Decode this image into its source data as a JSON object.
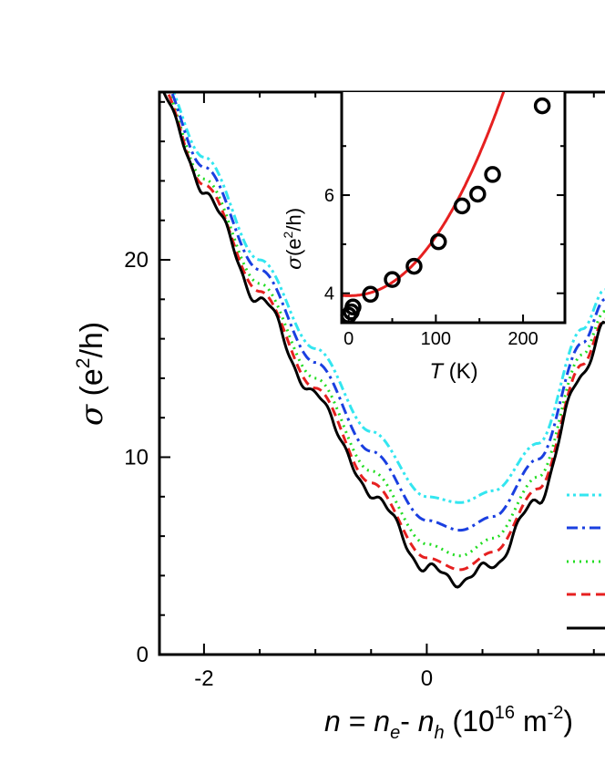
{
  "chart_data": [
    {
      "type": "line",
      "xlabel": {
        "main_italic": "n",
        "eq": " = ",
        "ne_base": "n",
        "ne_sub": "e",
        "minus": "- ",
        "nh_base": "n",
        "nh_sub": "h",
        "units_open": " (10",
        "units_exp": "16",
        "units_mid": " m",
        "units_exp2": "-2",
        "units_close": ")"
      },
      "ylabel": {
        "sigma": "σ",
        "open": " (e",
        "exp": "2",
        "rest": "/h)"
      },
      "xlim": [
        -2.4,
        1.6
      ],
      "ylim": [
        0,
        28.5
      ],
      "x_ticks": [
        -2,
        0
      ],
      "x_tick_labels": [
        "-2",
        "0"
      ],
      "y_ticks": [
        0,
        10,
        20
      ],
      "y_tick_labels": [
        "0",
        "10",
        "20"
      ],
      "series": [
        {
          "key": "cyan",
          "color": "#33e6f0",
          "dash": "3,4,3,4,10,4",
          "x": [
            -2.4,
            -2.0,
            -1.5,
            -1.0,
            -0.5,
            0.0,
            0.3,
            0.6,
            1.0,
            1.4,
            1.6
          ],
          "values": [
            29.5,
            25.2,
            20.0,
            15.5,
            11.3,
            8.0,
            7.7,
            8.3,
            10.7,
            16.5,
            18.5
          ]
        },
        {
          "key": "blue",
          "color": "#1a3fe0",
          "dash": "12,5,3,5",
          "x": [
            -2.4,
            -2.0,
            -1.5,
            -1.0,
            -0.5,
            0.0,
            0.3,
            0.6,
            1.0,
            1.4,
            1.6
          ],
          "values": [
            29.3,
            24.7,
            19.5,
            14.8,
            10.3,
            6.8,
            6.3,
            7.0,
            9.9,
            15.8,
            18.0
          ]
        },
        {
          "key": "green",
          "color": "#22dd22",
          "dash": "2,5",
          "x": [
            -2.4,
            -2.0,
            -1.5,
            -1.0,
            -0.5,
            0.0,
            0.3,
            0.6,
            1.0,
            1.4,
            1.6
          ],
          "values": [
            29.0,
            24.1,
            18.8,
            14.0,
            9.3,
            5.6,
            5.0,
            5.9,
            9.0,
            15.2,
            17.4
          ]
        },
        {
          "key": "red",
          "color": "#e62020",
          "dash": "10,6",
          "x": [
            -2.4,
            -2.0,
            -1.5,
            -1.0,
            -0.5,
            0.0,
            0.3,
            0.6,
            1.0,
            1.4,
            1.6
          ],
          "values": [
            28.9,
            23.8,
            18.4,
            13.5,
            8.7,
            4.9,
            4.3,
            5.2,
            8.4,
            14.7,
            17.0
          ]
        },
        {
          "key": "black",
          "color": "#000000",
          "dash": "",
          "x": [
            -2.4,
            -2.0,
            -1.5,
            -1.0,
            -0.5,
            0.0,
            0.3,
            0.6,
            1.0,
            1.4,
            1.6
          ],
          "values": [
            28.8,
            23.5,
            18.0,
            13.1,
            8.2,
            4.4,
            3.7,
            4.6,
            7.9,
            14.3,
            16.6
          ]
        }
      ],
      "legend": {
        "position": "bottom-right",
        "labels": [
          "",
          "",
          "",
          "",
          ""
        ]
      }
    },
    {
      "type": "scatter",
      "inset": true,
      "xlabel": {
        "var": "T",
        "unit": " (K)"
      },
      "ylabel": {
        "sigma": "σ",
        "open": "(e",
        "exp": "2",
        "rest": "/h)"
      },
      "xlim": [
        -8,
        248
      ],
      "ylim": [
        3.4,
        8.1
      ],
      "x_ticks": [
        0,
        100,
        200
      ],
      "x_tick_labels": [
        "0",
        "100",
        "200"
      ],
      "y_ticks": [
        4,
        6
      ],
      "y_tick_labels": [
        "4",
        "6"
      ],
      "points": {
        "x": [
          0,
          3,
          5,
          25,
          50,
          75,
          103,
          130,
          148,
          165,
          222
        ],
        "y": [
          3.55,
          3.62,
          3.72,
          3.98,
          4.28,
          4.55,
          5.05,
          5.78,
          6.02,
          6.42,
          7.82
        ]
      },
      "fit": {
        "color": "#e62020",
        "sigma0": 3.95,
        "coef": 6.05e-05,
        "power": 2.15,
        "x_range": [
          -8,
          231
        ]
      }
    }
  ]
}
